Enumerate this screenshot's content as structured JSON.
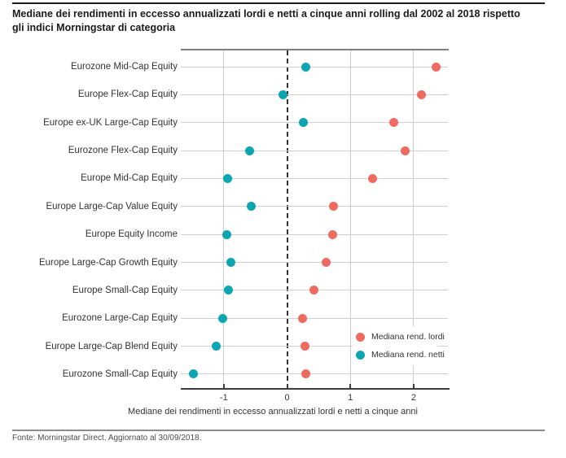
{
  "title": {
    "line1": "Mediane dei rendimenti in eccesso annualizzati lordi e netti a cinque anni rolling dal 2002 al 2018 rispetto",
    "line2": "gli indici Morningstar di categoria"
  },
  "footer": {
    "source": "Fonte: Morningstar Direct. Aggiornato al 30/09/2018."
  },
  "chart_data": {
    "type": "scatter",
    "subtype": "horizontal-dot-plot",
    "title": "Mediane dei rendimenti in eccesso annualizzati lordi e netti a cinque anni rolling dal 2002 al 2018 rispetto gli indici Morningstar di categoria",
    "xlabel": "Mediane dei rendimenti in eccesso annualizzati lordi e netti a cinque anni",
    "categories": [
      "Eurozone Mid-Cap Equity",
      "Europe Flex-Cap Equity",
      "Europe ex-UK Large-Cap Equity",
      "Eurozone Flex-Cap Equity",
      "Europe Mid-Cap Equity",
      "Europe Large-Cap Value Equity",
      "Europe Equity Income",
      "Europe Large-Cap Growth Equity",
      "Europe Small-Cap Equity",
      "Eurozone Large-Cap Equity",
      "Europe Large-Cap Blend Equity",
      "Eurozone Small-Cap Equity"
    ],
    "series": [
      {
        "name": "Mediana rend. lordi",
        "color": "#ee6b60",
        "values": [
          2.35,
          2.12,
          1.68,
          1.87,
          1.35,
          0.74,
          0.72,
          0.62,
          0.42,
          0.25,
          0.28,
          0.3
        ]
      },
      {
        "name": "Mediana rend. netti",
        "color": "#0ba6b2",
        "values": [
          0.29,
          -0.07,
          0.26,
          -0.59,
          -0.94,
          -0.57,
          -0.95,
          -0.89,
          -0.93,
          -1.02,
          -1.12,
          -1.48
        ]
      }
    ],
    "x_ticks": [
      -1,
      0,
      1,
      2
    ],
    "xlim": [
      -1.68,
      2.54
    ],
    "zero_line": "dashed",
    "grid": "on",
    "legend_position": "inside-lower-right"
  }
}
